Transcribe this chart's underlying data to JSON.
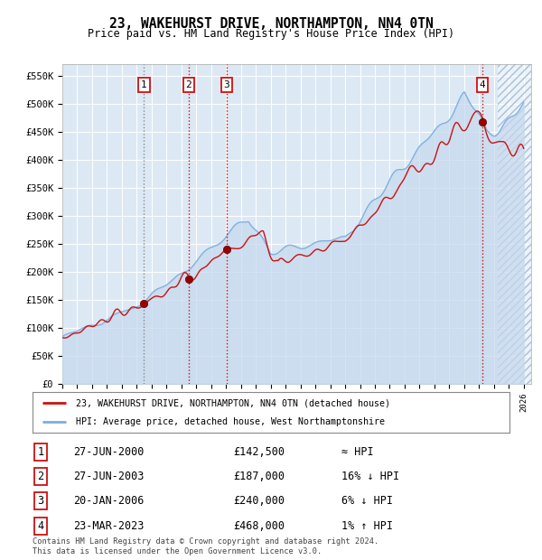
{
  "title": "23, WAKEHURST DRIVE, NORTHAMPTON, NN4 0TN",
  "subtitle": "Price paid vs. HM Land Registry's House Price Index (HPI)",
  "bg_color": "#dce9f5",
  "legend1": "23, WAKEHURST DRIVE, NORTHAMPTON, NN4 0TN (detached house)",
  "legend2": "HPI: Average price, detached house, West Northamptonshire",
  "footer": "Contains HM Land Registry data © Crown copyright and database right 2024.\nThis data is licensed under the Open Government Licence v3.0.",
  "sale_points": [
    {
      "label": "1",
      "date": "27-JUN-2000",
      "price": 142500,
      "note": "≈ HPI",
      "x_year": 2000.49
    },
    {
      "label": "2",
      "date": "27-JUN-2003",
      "price": 187000,
      "note": "16% ↓ HPI",
      "x_year": 2003.49
    },
    {
      "label": "3",
      "date": "20-JAN-2006",
      "price": 240000,
      "note": "6% ↓ HPI",
      "x_year": 2006.05
    },
    {
      "label": "4",
      "date": "23-MAR-2023",
      "price": 468000,
      "note": "1% ↑ HPI",
      "x_year": 2023.22
    }
  ],
  "ylim": [
    0,
    570000
  ],
  "xlim": [
    1995.0,
    2026.5
  ],
  "hatch_start": 2024.25,
  "yticks": [
    0,
    50000,
    100000,
    150000,
    200000,
    250000,
    300000,
    350000,
    400000,
    450000,
    500000,
    550000
  ],
  "ytick_labels": [
    "£0",
    "£50K",
    "£100K",
    "£150K",
    "£200K",
    "£250K",
    "£300K",
    "£350K",
    "£400K",
    "£450K",
    "£500K",
    "£550K"
  ]
}
